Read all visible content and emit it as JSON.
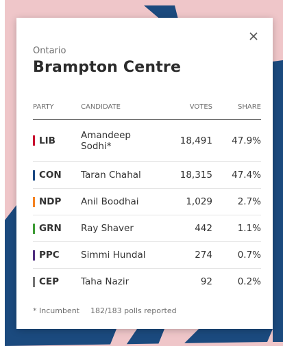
{
  "popup": {
    "province": "Ontario",
    "riding": "Brampton Centre",
    "columns": {
      "party": "PARTY",
      "candidate": "CANDIDATE",
      "votes": "VOTES",
      "share": "SHARE"
    },
    "results": [
      {
        "party": "LIB",
        "color": "#c8102e",
        "candidate": "Amandeep Sodhi*",
        "votes": "18,491",
        "share": "47.9%"
      },
      {
        "party": "CON",
        "color": "#1a4782",
        "candidate": "Taran Chahal",
        "votes": "18,315",
        "share": "47.4%"
      },
      {
        "party": "NDP",
        "color": "#f58220",
        "candidate": "Anil Boodhai",
        "votes": "1,029",
        "share": "2.7%"
      },
      {
        "party": "GRN",
        "color": "#3d9b35",
        "candidate": "Ray Shaver",
        "votes": "442",
        "share": "1.1%"
      },
      {
        "party": "PPC",
        "color": "#4f2d7f",
        "candidate": "Simmi Hundal",
        "votes": "274",
        "share": "0.7%"
      },
      {
        "party": "CEP",
        "color": "#737373",
        "candidate": "Taha Nazir",
        "votes": "92",
        "share": "0.2%"
      }
    ],
    "footer": {
      "incumbent_note": "* Incumbent",
      "polls": "182/183 polls reported"
    }
  },
  "icons": {
    "close": "close-icon"
  },
  "map_colors": {
    "liberal_fill": "#efc6c9",
    "conservative_fill": "#1b4a7e"
  }
}
